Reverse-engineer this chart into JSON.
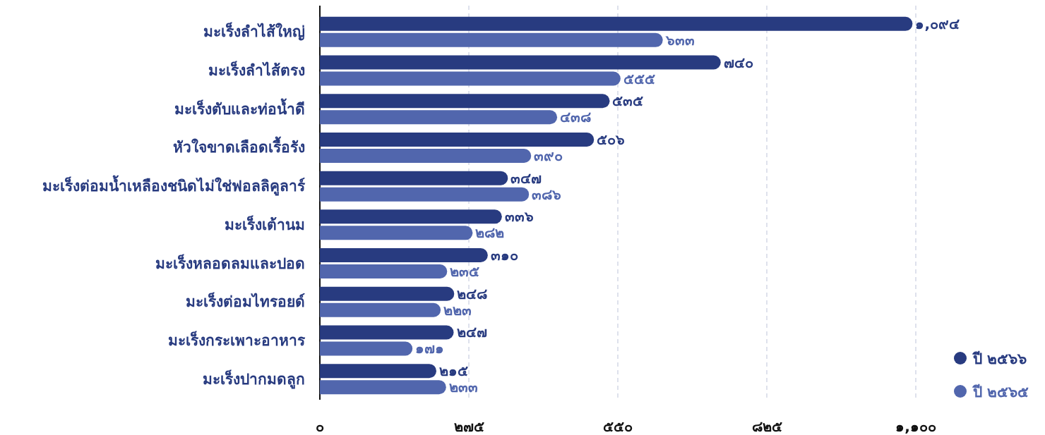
{
  "chart_data": {
    "type": "bar",
    "orientation": "horizontal",
    "categories": [
      "มะเร็งลำไส้ใหญ่",
      "มะเร็งลำไส้ตรง",
      "มะเร็งตับและท่อน้ำดี",
      "หัวใจขาดเลือดเรื้อรัง",
      "มะเร็งต่อมน้ำเหลืองชนิดไม่ใช่ฟอลลิคูลาร์",
      "มะเร็งเต้านม",
      "มะเร็งหลอดลมและปอด",
      "มะเร็งต่อมไทรอยด์",
      "มะเร็งกระเพาะอาหาร",
      "มะเร็งปากมดลูก"
    ],
    "series": [
      {
        "name": "ปี ๒๕๖๖",
        "color": "#283b80",
        "values": [
          1094,
          740,
          535,
          506,
          347,
          336,
          310,
          248,
          247,
          215
        ],
        "value_labels": [
          "๑,๐๙๔",
          "๗๔๐",
          "๕๓๕",
          "๕๐๖",
          "๓๔๗",
          "๓๓๖",
          "๓๑๐",
          "๒๔๘",
          "๒๔๗",
          "๒๑๕"
        ]
      },
      {
        "name": "ปี ๒๕๖๕",
        "color": "#5166ad",
        "values": [
          633,
          555,
          438,
          390,
          386,
          282,
          235,
          223,
          171,
          233
        ],
        "value_labels": [
          "๖๓๓",
          "๕๕๕",
          "๔๓๘",
          "๓๙๐",
          "๓๘๖",
          "๒๘๒",
          "๒๓๕",
          "๒๒๓",
          "๑๗๑",
          "๒๓๓"
        ]
      }
    ],
    "xlim": [
      0,
      1100
    ],
    "xticks": [
      {
        "value": 0,
        "label": "๐"
      },
      {
        "value": 275,
        "label": "๒๗๕"
      },
      {
        "value": 550,
        "label": "๕๕๐"
      },
      {
        "value": 825,
        "label": "๘๒๕"
      },
      {
        "value": 1100,
        "label": "๑,๑๐๐"
      }
    ],
    "grid": "x",
    "legend": "bottom right"
  }
}
